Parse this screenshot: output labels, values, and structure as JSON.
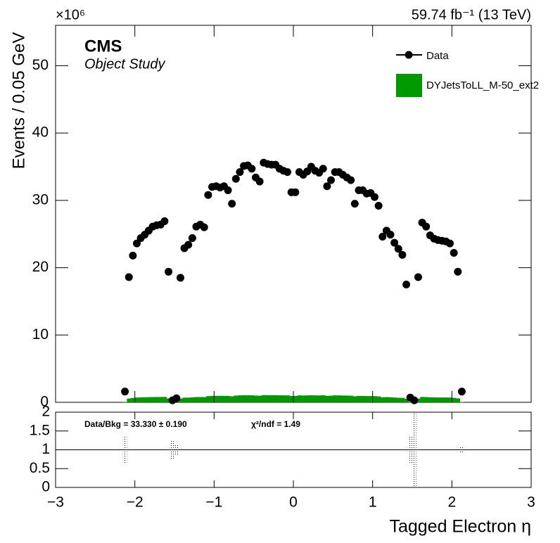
{
  "chart_data": [
    {
      "type": "scatter",
      "y_multiplier": "×10⁶",
      "lumi": "59.74 fb⁻¹ (13 TeV)",
      "experiment": "CMS",
      "subtitle": "Object Study",
      "ylabel": "Events / 0.05 GeV",
      "xlim": [
        -3,
        3
      ],
      "ylim": [
        0,
        56
      ],
      "yticks": [
        0,
        10,
        20,
        30,
        40,
        50
      ],
      "legend": "top-right",
      "x": [
        -2.125,
        -2.075,
        -2.025,
        -1.975,
        -1.925,
        -1.875,
        -1.825,
        -1.775,
        -1.725,
        -1.675,
        -1.625,
        -1.575,
        -1.525,
        -1.475,
        -1.425,
        -1.375,
        -1.325,
        -1.275,
        -1.225,
        -1.175,
        -1.125,
        -1.075,
        -1.025,
        -0.975,
        -0.925,
        -0.875,
        -0.825,
        -0.775,
        -0.725,
        -0.675,
        -0.625,
        -0.575,
        -0.525,
        -0.475,
        -0.425,
        -0.375,
        -0.325,
        -0.275,
        -0.225,
        -0.175,
        -0.125,
        -0.075,
        -0.025,
        0.025,
        0.075,
        0.125,
        0.175,
        0.225,
        0.275,
        0.325,
        0.375,
        0.425,
        0.475,
        0.525,
        0.575,
        0.625,
        0.675,
        0.725,
        0.775,
        0.825,
        0.875,
        0.925,
        0.975,
        1.025,
        1.075,
        1.125,
        1.175,
        1.225,
        1.275,
        1.325,
        1.375,
        1.425,
        1.475,
        1.525,
        1.575,
        1.625,
        1.675,
        1.725,
        1.775,
        1.825,
        1.875,
        1.925,
        1.975,
        2.025,
        2.075,
        2.125
      ],
      "series": [
        {
          "name": "Data",
          "color": "#000000",
          "marker": "point",
          "values": [
            1.6,
            18.6,
            21.8,
            23.6,
            24.4,
            24.9,
            25.5,
            26.1,
            26.3,
            26.4,
            26.9,
            19.4,
            0.3,
            0.6,
            18.5,
            22.9,
            23.4,
            24.4,
            26.1,
            26.4,
            26.0,
            30.8,
            32.0,
            32.1,
            31.9,
            32.1,
            31.5,
            29.5,
            33.2,
            34.2,
            35.1,
            35.2,
            34.7,
            33.4,
            32.8,
            35.6,
            35.4,
            35.3,
            35.3,
            34.7,
            34.4,
            34.2,
            31.2,
            31.2,
            34.2,
            33.8,
            34.3,
            35.0,
            34.4,
            34.1,
            34.7,
            32.1,
            33.0,
            34.2,
            34.2,
            33.8,
            33.4,
            33.0,
            29.5,
            31.5,
            31.5,
            31.0,
            31.1,
            30.5,
            29.2,
            24.6,
            25.5,
            24.9,
            23.7,
            22.8,
            21.9,
            17.5,
            0.7,
            0.3,
            18.6,
            26.7,
            26.1,
            24.8,
            24.3,
            24.1,
            24.0,
            23.9,
            23.6,
            22.2,
            19.4,
            1.6
          ]
        },
        {
          "name": "DYJetsToLL_M-50_ext2",
          "color": "#009900",
          "marker": "bar",
          "values": [
            0.05,
            0.56,
            0.65,
            0.71,
            0.73,
            0.75,
            0.77,
            0.78,
            0.79,
            0.79,
            0.81,
            0.58,
            0.01,
            0.02,
            0.56,
            0.69,
            0.7,
            0.73,
            0.78,
            0.79,
            0.78,
            0.92,
            0.96,
            0.96,
            0.96,
            0.96,
            0.95,
            0.89,
            1.0,
            1.03,
            1.05,
            1.06,
            1.04,
            1.0,
            0.98,
            1.07,
            1.06,
            1.06,
            1.06,
            1.04,
            1.03,
            1.03,
            0.94,
            0.94,
            1.03,
            1.01,
            1.03,
            1.05,
            1.03,
            1.02,
            1.04,
            0.96,
            0.99,
            1.03,
            1.03,
            1.01,
            1.0,
            0.99,
            0.89,
            0.95,
            0.95,
            0.93,
            0.93,
            0.92,
            0.88,
            0.74,
            0.77,
            0.75,
            0.71,
            0.68,
            0.66,
            0.53,
            0.02,
            0.01,
            0.56,
            0.8,
            0.78,
            0.74,
            0.73,
            0.72,
            0.72,
            0.72,
            0.71,
            0.67,
            0.58,
            0.05
          ]
        }
      ]
    },
    {
      "type": "band",
      "xlabel": "Tagged Electron η",
      "annotations": [
        "Data/Bkg = 33.330 ± 0.190",
        "χ²/ndf = 1.49"
      ],
      "reference": 1,
      "xlim": [
        -3,
        3
      ],
      "xticks": [
        {
          "value": -3,
          "label": "−3"
        },
        {
          "value": -2,
          "label": "−2"
        },
        {
          "value": -1,
          "label": "−1"
        },
        0,
        1,
        2,
        3
      ],
      "ylim": [
        0,
        2
      ],
      "yticks": [
        0,
        0.5,
        1,
        1.5,
        2
      ],
      "color": "#000000",
      "x": [
        -2.125,
        -2.075,
        -2.025,
        -1.975,
        -1.925,
        -1.875,
        -1.825,
        -1.775,
        -1.725,
        -1.675,
        -1.625,
        -1.575,
        -1.525,
        -1.475,
        -1.425,
        -1.375,
        -1.325,
        -1.275,
        -1.225,
        -1.175,
        -1.125,
        -1.075,
        -1.025,
        -0.975,
        -0.925,
        -0.875,
        -0.825,
        -0.775,
        -0.725,
        -0.675,
        -0.625,
        -0.575,
        -0.525,
        -0.475,
        -0.425,
        -0.375,
        -0.325,
        -0.275,
        -0.225,
        -0.175,
        -0.125,
        -0.075,
        -0.025,
        0.025,
        0.075,
        0.125,
        0.175,
        0.225,
        0.275,
        0.325,
        0.375,
        0.425,
        0.475,
        0.525,
        0.575,
        0.625,
        0.675,
        0.725,
        0.775,
        0.825,
        0.875,
        0.925,
        0.975,
        1.025,
        1.075,
        1.125,
        1.175,
        1.225,
        1.275,
        1.325,
        1.375,
        1.425,
        1.475,
        1.525,
        1.575,
        1.625,
        1.675,
        1.725,
        1.775,
        1.825,
        1.875,
        1.925,
        1.975,
        2.025,
        2.075,
        2.125
      ],
      "values": [
        0.37,
        0.05,
        0.03,
        0.03,
        0.02,
        0.02,
        0.02,
        0.02,
        0.02,
        0.02,
        0.02,
        0.05,
        0.26,
        0.15,
        0.03,
        0.02,
        0.02,
        0.02,
        0.02,
        0.02,
        0.02,
        0.02,
        0.02,
        0.02,
        0.02,
        0.02,
        0.02,
        0.02,
        0.02,
        0.02,
        0.02,
        0.02,
        0.02,
        0.02,
        0.02,
        0.02,
        0.02,
        0.02,
        0.02,
        0.02,
        0.02,
        0.02,
        0.02,
        0.02,
        0.02,
        0.02,
        0.02,
        0.02,
        0.02,
        0.02,
        0.02,
        0.02,
        0.02,
        0.02,
        0.02,
        0.02,
        0.02,
        0.02,
        0.02,
        0.02,
        0.02,
        0.02,
        0.02,
        0.02,
        0.02,
        0.02,
        0.02,
        0.02,
        0.02,
        0.02,
        0.02,
        0.05,
        0.35,
        1.0,
        0.05,
        0.02,
        0.02,
        0.02,
        0.02,
        0.02,
        0.02,
        0.02,
        0.02,
        0.03,
        0.05,
        0.09
      ]
    }
  ]
}
